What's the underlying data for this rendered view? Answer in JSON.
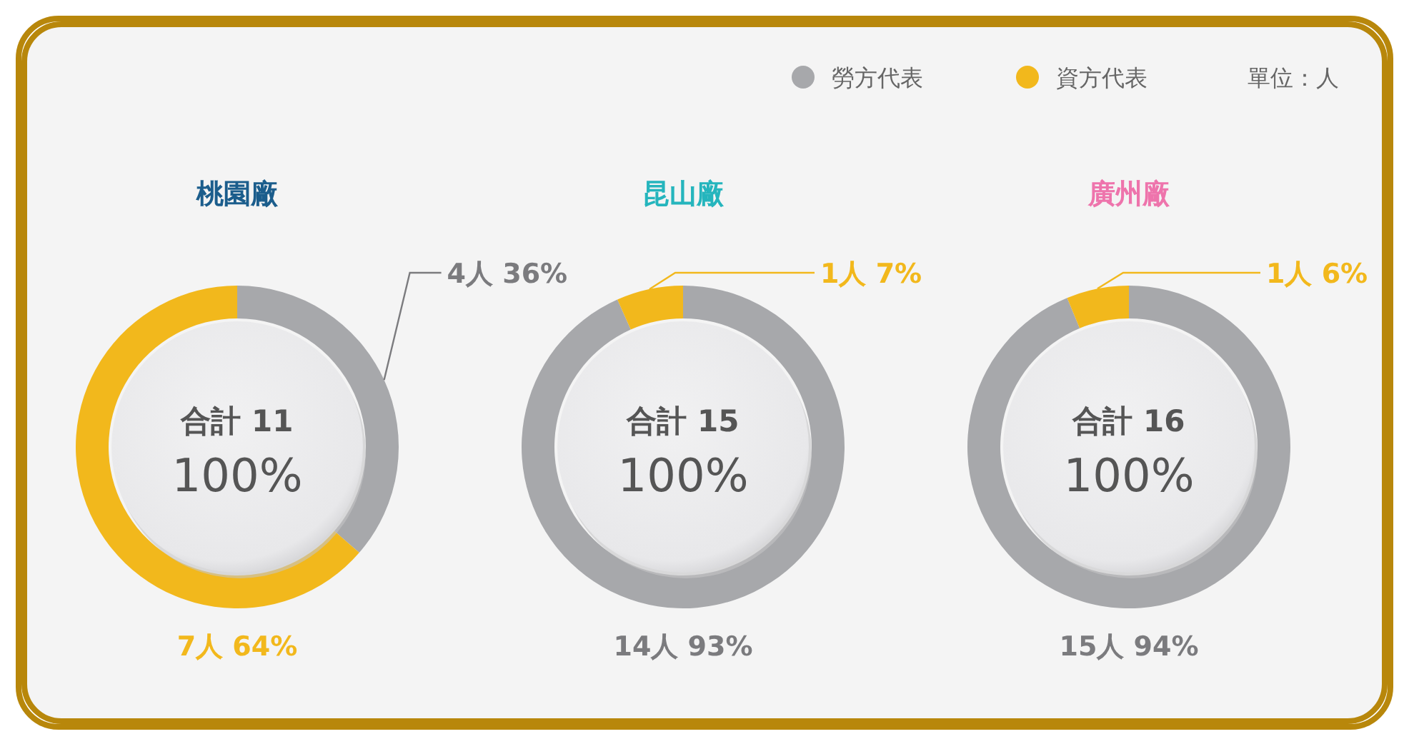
{
  "chart_data": [
    {
      "type": "donut",
      "title": "桃園廠",
      "categories": [
        "勞方代表",
        "資方代表"
      ],
      "values": [
        4,
        7
      ],
      "colors": [
        "#a7a8ab",
        "#f2b81c"
      ],
      "value_labels": [
        "4人 36%",
        "7人  64%"
      ],
      "annotations": [
        "合計 11",
        "100%",
        "單位：人"
      ],
      "legend": "top right"
    },
    {
      "type": "donut",
      "title": "昆山廠",
      "categories": [
        null,
        null
      ],
      "values": [
        14,
        1
      ],
      "colors": [
        "#a7a8ab",
        "#f2b81c"
      ],
      "value_labels": [
        "14人  93%",
        "1人  7%"
      ],
      "annotations": [
        "合計 15",
        "100%"
      ]
    },
    {
      "type": "donut",
      "title": "廣州廠",
      "categories": [
        null,
        null
      ],
      "values": [
        15,
        1
      ],
      "colors": [
        "#a7a8ab",
        "#f2b81c"
      ],
      "value_labels": [
        "15人  94%",
        "1人 6%"
      ],
      "annotations": [
        "合計 16",
        "100%"
      ]
    }
  ]
}
